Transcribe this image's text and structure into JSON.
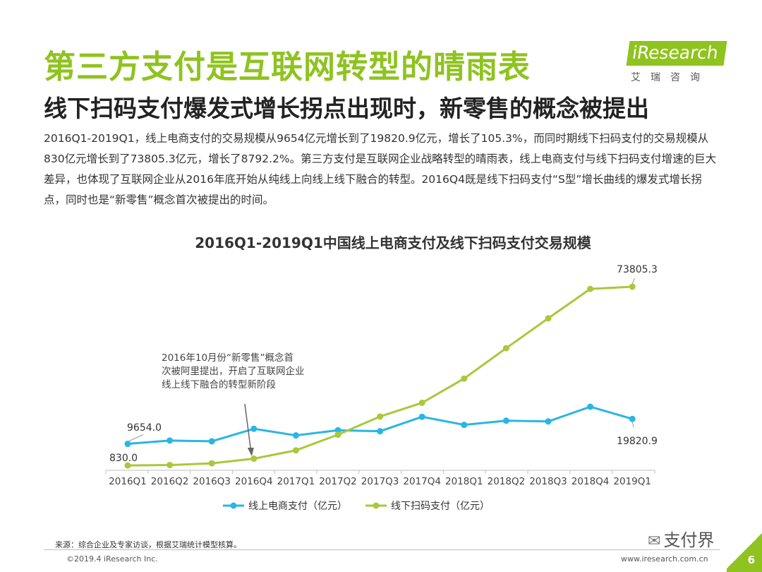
{
  "header": {
    "title": "第三方支付是互联网转型的晴雨表",
    "subtitle": "线下扫码支付爆发式增长拐点出现时，新零售的概念被提出",
    "logo_text": "iResearch",
    "logo_cn": "艾瑞咨询"
  },
  "body_text": "2016Q1-2019Q1，线上电商支付的交易规模从9654亿元增长到了19820.9亿元，增长了105.3%，而同时期线下扫码支付的交易规模从830亿元增长到了73805.3亿元，增长了8792.2%。第三方支付是互联网企业战略转型的晴雨表，线上电商支付与线下扫码支付增速的巨大差异，也体现了互联网企业从2016年底开始从纯线上向线上线下融合的转型。2016Q4既是线下扫码支付“S型”增长曲线的爆发式增长拐点，同时也是“新零售”概念首次被提出的时间。",
  "chart_data": {
    "type": "line",
    "title": "2016Q1-2019Q1中国线上电商支付及线下扫码支付交易规模",
    "categories": [
      "2016Q1",
      "2016Q2",
      "2016Q3",
      "2016Q4",
      "2017Q1",
      "2017Q2",
      "2017Q3",
      "2017Q4",
      "2018Q1",
      "2018Q2",
      "2018Q3",
      "2018Q4",
      "2019Q1"
    ],
    "series": [
      {
        "name": "线上电商支付（亿元）",
        "color": "#29b6e3",
        "values": [
          9654.0,
          11000,
          10700,
          15800,
          13100,
          15200,
          14800,
          20700,
          17400,
          19100,
          18800,
          24800,
          19820.9
        ]
      },
      {
        "name": "线下扫码支付（亿元）",
        "color": "#a9c83a",
        "values": [
          830.0,
          1000,
          1700,
          3600,
          7000,
          13400,
          20800,
          26400,
          36300,
          48700,
          60900,
          72900,
          73805.3
        ]
      }
    ],
    "data_labels": [
      {
        "series": 0,
        "index": 0,
        "text": "9654.0"
      },
      {
        "series": 0,
        "index": 12,
        "text": "19820.9"
      },
      {
        "series": 1,
        "index": 0,
        "text": "830.0"
      },
      {
        "series": 1,
        "index": 12,
        "text": "73805.3"
      }
    ],
    "annotation": {
      "lines": [
        "2016年10月份“新零售”概念首",
        "次被阿里提出，开启了互联网企业",
        "线上线下融合的转型新阶段"
      ],
      "target_index": 3
    },
    "ylim": [
      0,
      80000
    ],
    "grid": false,
    "legend_position": "bottom"
  },
  "footer": {
    "source": "来源：综合企业及专家访谈，根据艾瑞统计模型核算。",
    "copyright": "©2019.4 iResearch Inc.",
    "url": "www.iresearch.com.cn",
    "page_number": "6",
    "wechat_label": "支付界"
  }
}
